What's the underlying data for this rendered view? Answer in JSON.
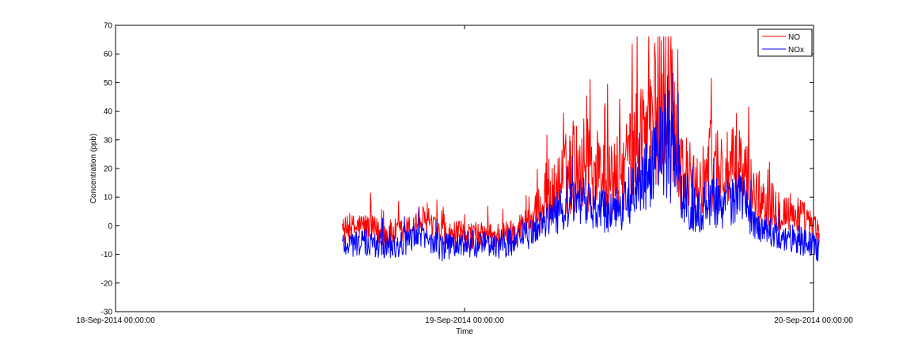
{
  "chart_data": {
    "type": "line",
    "title": "",
    "xlabel": "Time",
    "ylabel": "Concentration (ppb)",
    "ylim": [
      -30,
      70
    ],
    "yticks": [
      -30,
      -20,
      -10,
      0,
      10,
      20,
      30,
      40,
      50,
      60,
      70
    ],
    "xticks": [
      "18-Sep-2014 00:00:00",
      "19-Sep-2014 00:00:00",
      "20-Sep-2014 00:00:00"
    ],
    "xlim": [
      "18-Sep-2014 00:00:00",
      "20-Sep-2014 00:00:00"
    ],
    "grid": false,
    "legend_position": "top-right",
    "series": [
      {
        "name": "NO",
        "color": "#ff0000",
        "x_hours": [
          15.6,
          17.0,
          18.5,
          20.0,
          21.0,
          22.5,
          24.0,
          25.5,
          27.0,
          28.5,
          30.0,
          31.0,
          32.0,
          33.0,
          34.0,
          35.0,
          36.0,
          37.0,
          38.0,
          39.0,
          40.0,
          41.0,
          42.0,
          43.0,
          44.0,
          45.0,
          46.0,
          47.0,
          48.5
        ],
        "y": [
          -2,
          0,
          -3,
          -2,
          2,
          -4,
          -3,
          -4,
          -3,
          2,
          10,
          18,
          22,
          20,
          15,
          20,
          30,
          38,
          48,
          20,
          12,
          22,
          18,
          20,
          10,
          8,
          5,
          4,
          -3
        ]
      },
      {
        "name": "NOx",
        "color": "#0000ff",
        "x_hours": [
          15.6,
          17.0,
          18.5,
          20.0,
          21.0,
          22.5,
          24.0,
          25.5,
          27.0,
          28.5,
          30.0,
          31.0,
          32.0,
          33.0,
          34.0,
          35.0,
          36.0,
          37.0,
          38.0,
          39.0,
          40.0,
          41.0,
          42.0,
          43.0,
          44.0,
          45.0,
          46.0,
          47.0,
          48.5
        ],
        "y": [
          -6,
          -6,
          -7,
          -6,
          -3,
          -8,
          -6,
          -7,
          -6,
          -3,
          4,
          6,
          8,
          6,
          5,
          8,
          12,
          20,
          32,
          12,
          4,
          10,
          8,
          10,
          0,
          -2,
          -4,
          -5,
          -8
        ]
      }
    ]
  }
}
